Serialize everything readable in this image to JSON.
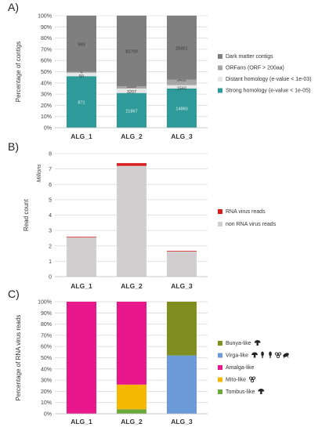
{
  "chart_data": [
    {
      "panel_label": "A)",
      "type": "bar",
      "stacked": "percent",
      "ylabel": "Percentage of contigs",
      "ylim": [
        0,
        100
      ],
      "yticks": [
        "0%",
        "10%",
        "20%",
        "30%",
        "40%",
        "50%",
        "60%",
        "70%",
        "80%",
        "90%",
        "100%"
      ],
      "grid": true,
      "legend_position": "right",
      "categories": [
        "ALG_1",
        "ALG_2",
        "ALG_3"
      ],
      "series": [
        {
          "name": "Strong homology (e-value < 1e-05)",
          "color": "#2e9a9a",
          "values": [
            46,
            31,
            35
          ],
          "labels": [
            "871",
            "21867",
            "14860"
          ]
        },
        {
          "name": "Distant homology (e-value < 1e-03)",
          "color": "#e6e6e6",
          "values": [
            3,
            4,
            3
          ],
          "labels": [
            "50",
            "3207",
            "1560"
          ]
        },
        {
          "name": "ORFans (ORF > 200aa)",
          "color": "#a6a6a6",
          "values": [
            1,
            2,
            5
          ],
          "labels": [
            "6",
            "1666",
            "3432"
          ]
        },
        {
          "name": "Dark matter contigs",
          "color": "#7f7f7f",
          "values": [
            50,
            63,
            57
          ],
          "labels": [
            "993",
            "82709",
            "25001"
          ]
        }
      ]
    },
    {
      "panel_label": "B)",
      "type": "bar",
      "stacked": "absolute",
      "ylabel": "Read count",
      "units_label": "Millions",
      "ylim": [
        0,
        8
      ],
      "yticks": [
        "0",
        "1",
        "2",
        "3",
        "4",
        "5",
        "6",
        "7",
        "8"
      ],
      "grid": true,
      "legend_position": "right",
      "categories": [
        "ALG_1",
        "ALG_2",
        "ALG_3"
      ],
      "series": [
        {
          "name": "non RNA virus reads",
          "color": "#d0cece",
          "values": [
            2.55,
            7.2,
            1.64
          ]
        },
        {
          "name": "RNA virus reads",
          "color": "#d62020",
          "values": [
            0.04,
            0.18,
            0.04
          ]
        }
      ]
    },
    {
      "panel_label": "C)",
      "type": "bar",
      "stacked": "percent",
      "ylabel": "Percentage of RNA virus reads",
      "ylim": [
        0,
        100
      ],
      "yticks": [
        "0%",
        "10%",
        "20%",
        "30%",
        "40%",
        "50%",
        "60%",
        "70%",
        "80%",
        "90%",
        "100%"
      ],
      "grid": true,
      "legend_position": "right",
      "categories": [
        "ALG_1",
        "ALG_2",
        "ALG_3"
      ],
      "series": [
        {
          "name": "Tombus-like",
          "color": "#6aaa3a",
          "values": [
            0,
            4,
            0
          ],
          "icons": [
            "mushroom-icon"
          ]
        },
        {
          "name": "Mito-like",
          "color": "#f5b800",
          "values": [
            0,
            22,
            0
          ],
          "icons": [
            "alga-icon"
          ]
        },
        {
          "name": "Amalga-like",
          "color": "#e8188c",
          "values": [
            100,
            74,
            0
          ],
          "icons": []
        },
        {
          "name": "Virga-like",
          "color": "#6a9bd8",
          "values": [
            0,
            0,
            52
          ],
          "icons": [
            "mushroom-icon",
            "plant-icon",
            "plant-icon",
            "alga-icon",
            "insect-icon"
          ]
        },
        {
          "name": "Bunya-like",
          "color": "#7f8f1f",
          "values": [
            0,
            0,
            48
          ],
          "icons": [
            "mushroom-icon"
          ]
        }
      ]
    }
  ]
}
